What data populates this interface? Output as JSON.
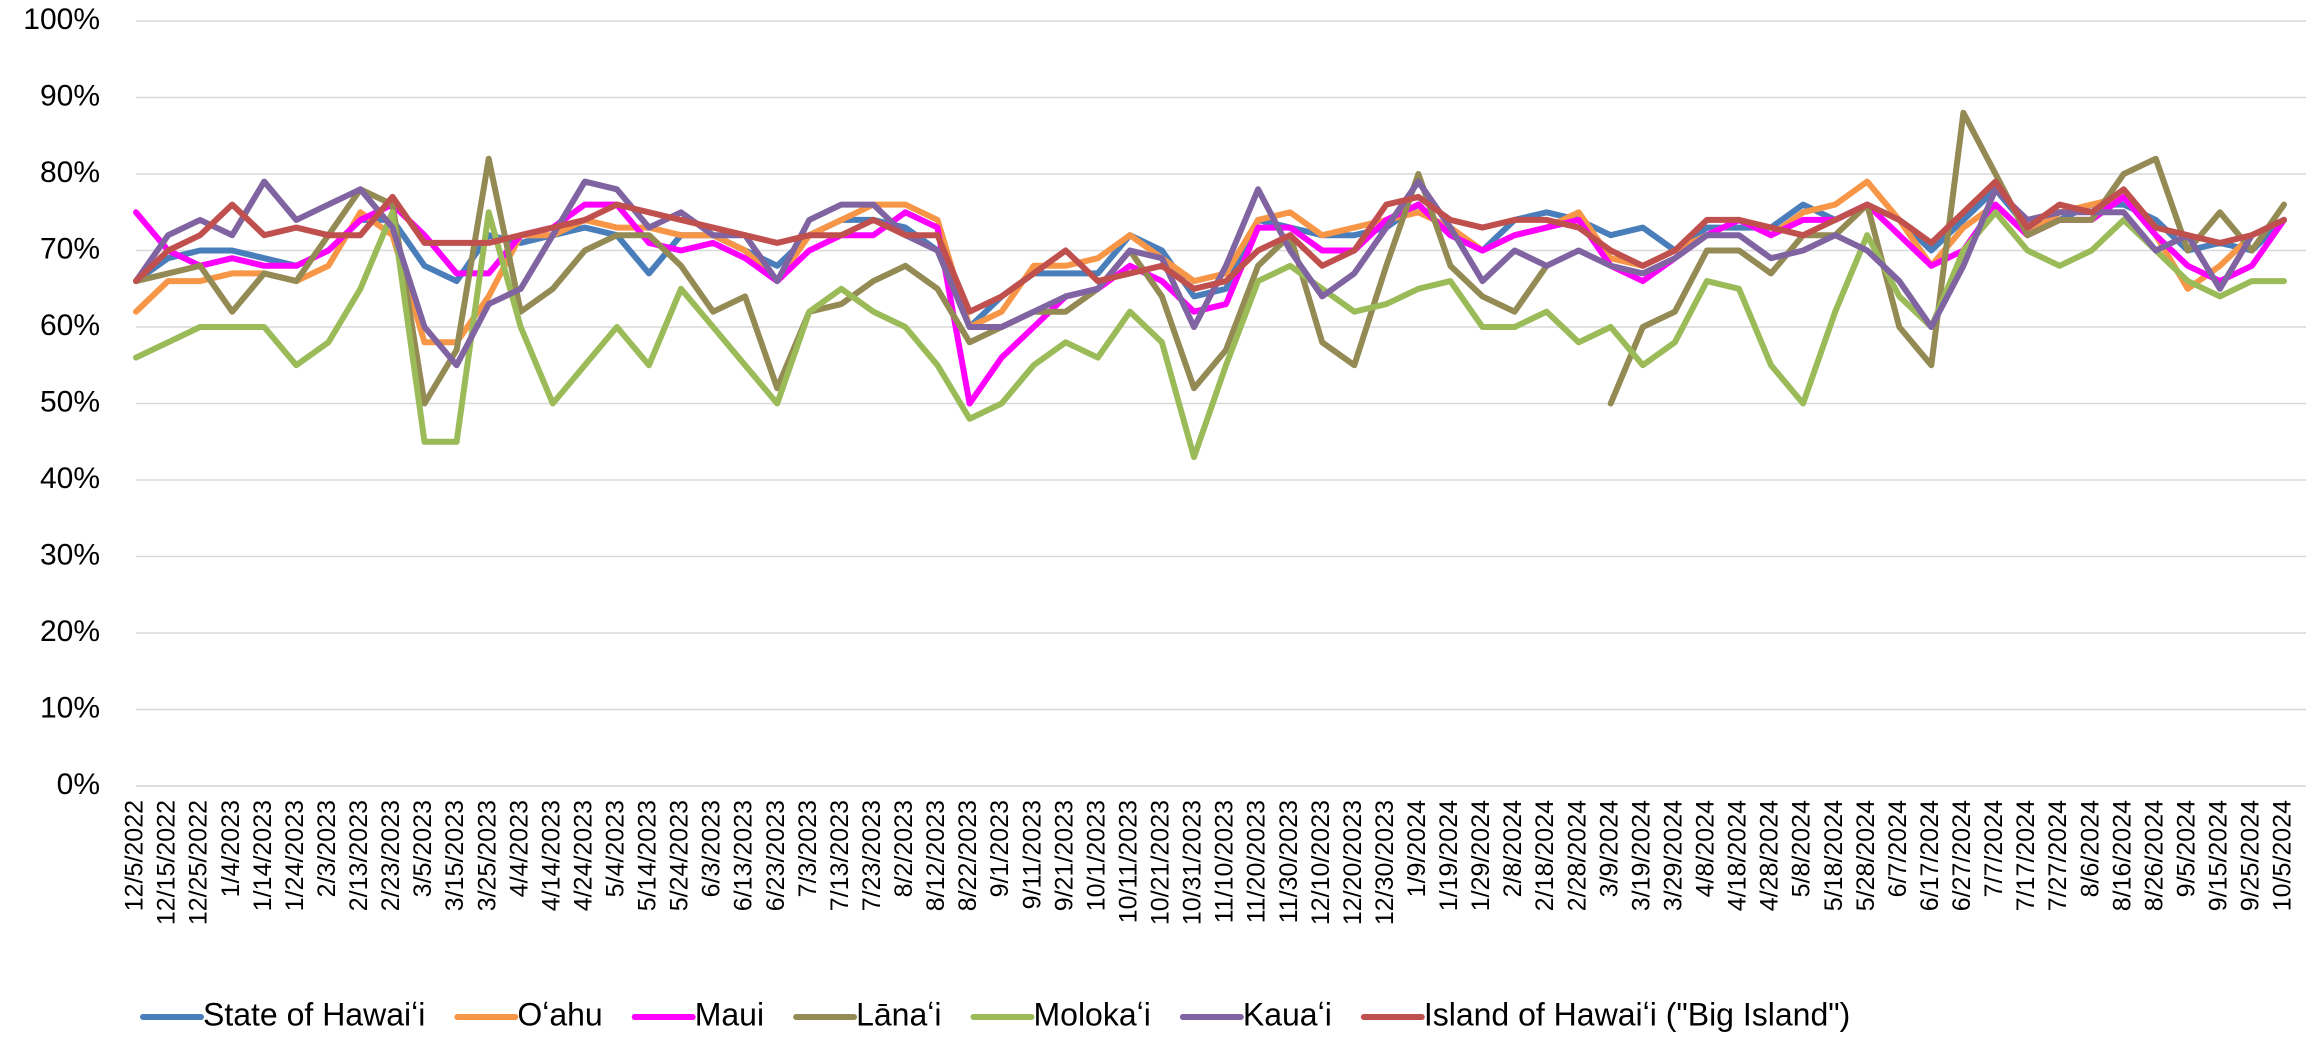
{
  "chart_data": {
    "type": "line",
    "categories": [
      "12/5/2022",
      "12/15/2022",
      "12/25/2022",
      "1/4/2023",
      "1/14/2023",
      "1/24/2023",
      "2/3/2023",
      "2/13/2023",
      "2/23/2023",
      "3/5/2023",
      "3/15/2023",
      "3/25/2023",
      "4/4/2023",
      "4/14/2023",
      "4/24/2023",
      "5/4/2023",
      "5/14/2023",
      "5/24/2023",
      "6/3/2023",
      "6/13/2023",
      "6/23/2023",
      "7/3/2023",
      "7/13/2023",
      "7/23/2023",
      "8/2/2023",
      "8/12/2023",
      "8/22/2023",
      "9/1/2023",
      "9/11/2023",
      "9/21/2023",
      "10/1/2023",
      "10/11/2023",
      "10/21/2023",
      "10/31/2023",
      "11/10/2023",
      "11/20/2023",
      "11/30/2023",
      "12/10/2023",
      "12/20/2023",
      "12/30/2023",
      "1/9/2024",
      "1/19/2024",
      "1/29/2024",
      "2/8/2024",
      "2/18/2024",
      "2/28/2024",
      "3/9/2024",
      "3/19/2024",
      "3/29/2024",
      "4/8/2024",
      "4/18/2024",
      "4/28/2024",
      "5/8/2024",
      "5/18/2024",
      "5/28/2024",
      "6/7/2024",
      "6/17/2024",
      "6/27/2024",
      "7/7/2024",
      "7/17/2024",
      "7/27/2024",
      "8/6/2024",
      "8/16/2024",
      "8/26/2024",
      "9/5/2024",
      "9/15/2024",
      "9/25/2024",
      "10/5/2024"
    ],
    "series": [
      {
        "name": "State of Hawaiʻi",
        "color": "#4a7ebb",
        "values": [
          66,
          69,
          70,
          70,
          69,
          68,
          70,
          74,
          74,
          68,
          66,
          72,
          71,
          72,
          73,
          72,
          67,
          72,
          72,
          70,
          68,
          72,
          74,
          74,
          73,
          70,
          60,
          64,
          67,
          67,
          67,
          72,
          70,
          64,
          65,
          74,
          73,
          72,
          72,
          73,
          76,
          72,
          70,
          74,
          75,
          74,
          72,
          73,
          70,
          73,
          73,
          73,
          76,
          74,
          76,
          74,
          70,
          74,
          78,
          73,
          74,
          76,
          76,
          74,
          70,
          71,
          70,
          74
        ]
      },
      {
        "name": "Oʻahu",
        "color": "#f79646",
        "values": [
          62,
          66,
          66,
          67,
          67,
          66,
          68,
          75,
          72,
          58,
          58,
          64,
          72,
          72,
          74,
          73,
          73,
          72,
          72,
          70,
          66,
          72,
          74,
          76,
          76,
          74,
          60,
          62,
          68,
          68,
          69,
          72,
          69,
          66,
          67,
          74,
          75,
          72,
          73,
          74,
          75,
          73,
          70,
          72,
          73,
          75,
          69,
          68,
          70,
          72,
          74,
          72,
          75,
          76,
          79,
          74,
          68,
          73,
          76,
          72,
          75,
          76,
          77,
          72,
          65,
          68,
          72,
          74
        ]
      },
      {
        "name": "Maui",
        "color": "#ff00ff",
        "values": [
          75,
          70,
          68,
          69,
          68,
          68,
          70,
          74,
          76,
          72,
          67,
          67,
          72,
          73,
          76,
          76,
          71,
          70,
          71,
          69,
          66,
          70,
          72,
          72,
          75,
          73,
          50,
          56,
          60,
          64,
          65,
          68,
          66,
          62,
          63,
          73,
          73,
          70,
          70,
          74,
          76,
          72,
          70,
          72,
          73,
          74,
          68,
          66,
          69,
          72,
          74,
          72,
          74,
          74,
          76,
          72,
          68,
          70,
          76,
          72,
          74,
          74,
          77,
          72,
          68,
          66,
          68,
          74
        ]
      },
      {
        "name": "Lānaʻi",
        "color": "#948a54",
        "values": [
          66,
          67,
          68,
          62,
          67,
          66,
          72,
          78,
          76,
          50,
          57,
          82,
          62,
          65,
          70,
          72,
          72,
          68,
          62,
          64,
          52,
          62,
          63,
          66,
          68,
          65,
          58,
          60,
          62,
          62,
          65,
          70,
          64,
          52,
          57,
          68,
          72,
          58,
          55,
          68,
          80,
          68,
          64,
          62,
          68,
          null,
          50,
          60,
          62,
          70,
          70,
          67,
          72,
          72,
          76,
          60,
          55,
          88,
          80,
          72,
          74,
          74,
          80,
          82,
          70,
          75,
          70,
          76
        ]
      },
      {
        "name": "Molokaʻi",
        "color": "#9bbb59",
        "values": [
          56,
          58,
          60,
          60,
          60,
          55,
          58,
          65,
          75,
          45,
          45,
          75,
          60,
          50,
          55,
          60,
          55,
          65,
          60,
          55,
          50,
          62,
          65,
          62,
          60,
          55,
          48,
          50,
          55,
          58,
          56,
          62,
          58,
          43,
          55,
          66,
          68,
          65,
          62,
          63,
          65,
          66,
          60,
          60,
          62,
          58,
          60,
          55,
          58,
          66,
          65,
          55,
          50,
          62,
          72,
          64,
          60,
          70,
          75,
          70,
          68,
          70,
          74,
          70,
          66,
          64,
          66,
          66
        ]
      },
      {
        "name": "Kauaʻi",
        "color": "#8064a2",
        "values": [
          66,
          72,
          74,
          72,
          79,
          74,
          76,
          78,
          73,
          60,
          55,
          63,
          65,
          72,
          79,
          78,
          73,
          75,
          72,
          72,
          66,
          74,
          76,
          76,
          72,
          70,
          60,
          60,
          62,
          64,
          65,
          70,
          69,
          60,
          68,
          78,
          70,
          64,
          67,
          73,
          79,
          73,
          66,
          70,
          68,
          70,
          68,
          67,
          69,
          72,
          72,
          69,
          70,
          72,
          70,
          66,
          60,
          68,
          78,
          74,
          75,
          75,
          75,
          70,
          72,
          65,
          72,
          74
        ]
      },
      {
        "name": "Island of Hawaiʻi (\"Big Island\")",
        "color": "#c0504d",
        "values": [
          66,
          70,
          72,
          76,
          72,
          73,
          72,
          72,
          77,
          71,
          71,
          71,
          72,
          73,
          74,
          76,
          75,
          74,
          73,
          72,
          71,
          72,
          72,
          74,
          72,
          72,
          62,
          64,
          67,
          70,
          66,
          67,
          68,
          65,
          66,
          70,
          72,
          68,
          70,
          76,
          77,
          74,
          73,
          74,
          74,
          73,
          70,
          68,
          70,
          74,
          74,
          73,
          72,
          74,
          76,
          74,
          71,
          75,
          79,
          73,
          76,
          75,
          78,
          73,
          72,
          71,
          72,
          74
        ]
      }
    ],
    "ylim": [
      0,
      100
    ],
    "yticks": [
      {
        "value": 0,
        "label": "0%"
      },
      {
        "value": 10,
        "label": "10%"
      },
      {
        "value": 20,
        "label": "20%"
      },
      {
        "value": 30,
        "label": "30%"
      },
      {
        "value": 40,
        "label": "40%"
      },
      {
        "value": 50,
        "label": "50%"
      },
      {
        "value": 60,
        "label": "60%"
      },
      {
        "value": 70,
        "label": "70%"
      },
      {
        "value": 80,
        "label": "80%"
      },
      {
        "value": 90,
        "label": "90%"
      },
      {
        "value": 100,
        "label": "100%"
      }
    ],
    "grid": true
  }
}
